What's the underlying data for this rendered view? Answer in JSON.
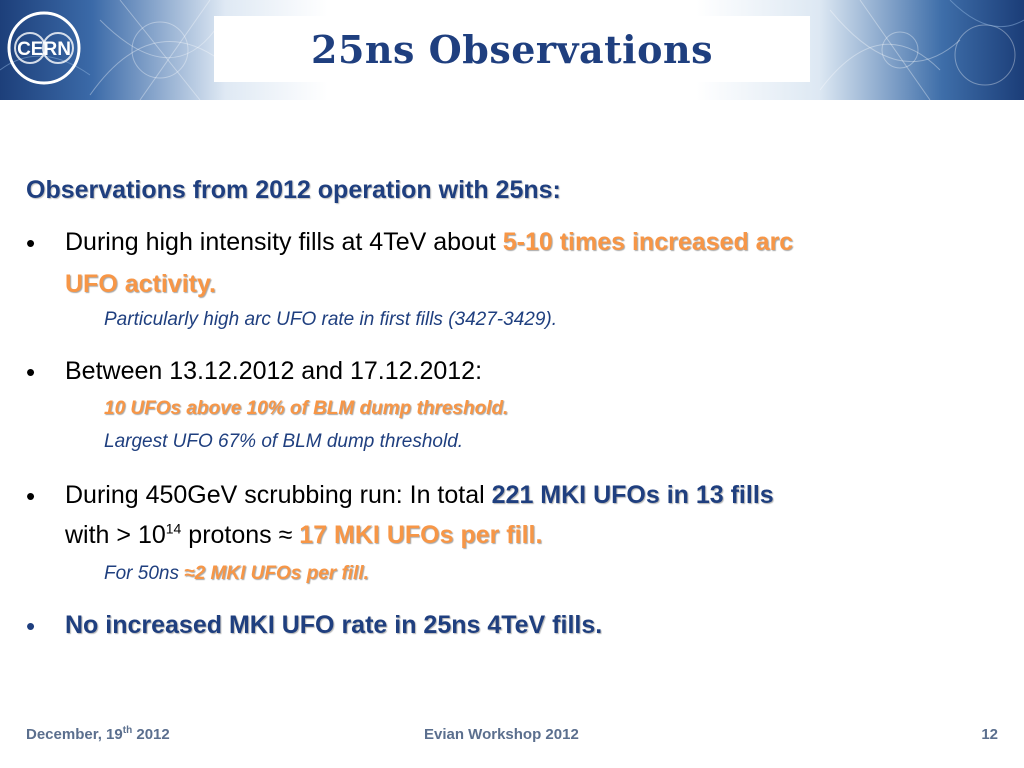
{
  "header": {
    "title": "25ns Observations",
    "logo_text": "CERN"
  },
  "main": {
    "heading": "Observations from 2012 operation with 25ns:",
    "bullet_symbol": "•",
    "b1": {
      "text": "During high intensity fills at 4TeV about ",
      "highlight_1": "5-10 times increased arc",
      "highlight_2": "UFO activity.",
      "sub": "Particularly high arc UFO rate in first fills (3427-3429)."
    },
    "b2": {
      "text": "Between 13.12.2012 and 17.12.2012:",
      "sub_1": "10 UFOs above 10% of BLM dump threshold.",
      "sub_2": "Largest UFO 67% of BLM dump threshold."
    },
    "b3": {
      "text": "During 450GeV scrubbing run: In total ",
      "highlight_1": "221 MKI UFOs in 13 fills",
      "text_2a": "with > 10",
      "sup": "14",
      "text_2b": " protons ≈ ",
      "highlight_2": "17 MKI UFOs per fill.",
      "sub_prefix": "For 50ns ",
      "sub_highlight": "≈2 MKI UFOs per fill."
    },
    "b4": {
      "text": "No increased MKI UFO rate in 25ns 4TeV fills."
    }
  },
  "footer": {
    "date_a": "December, 19",
    "date_sup": "th",
    "date_b": " 2012",
    "center": "Evian Workshop 2012",
    "page": "12"
  },
  "colors": {
    "title_blue": "#1f3f7f",
    "accent_orange": "#f79646",
    "footer_gray": "#5b6f8e"
  }
}
